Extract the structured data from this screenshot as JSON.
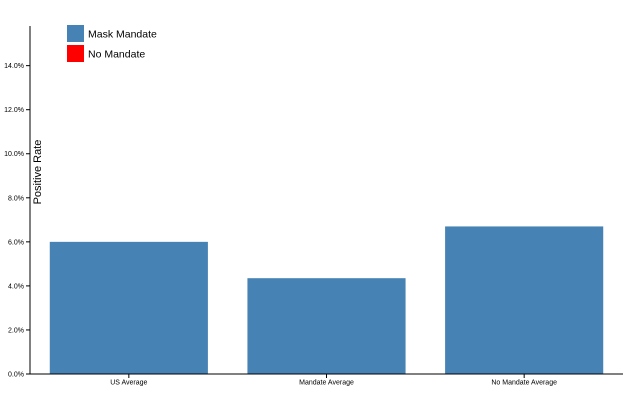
{
  "chart_data": {
    "type": "bar",
    "categories": [
      "US Average",
      "Mandate Average",
      "No Mandate Average"
    ],
    "values": [
      6.0,
      4.35,
      6.7
    ],
    "value_format": "percent",
    "ylabel": "Positive Rate",
    "xlabel": "",
    "ylim": [
      0,
      15.8
    ],
    "yticks": [
      "0.0%",
      "2.0%",
      "4.0%",
      "6.0%",
      "8.0%",
      "10.0%",
      "12.0%",
      "14.0%"
    ],
    "ytick_values": [
      0,
      2,
      4,
      6,
      8,
      10,
      12,
      14
    ],
    "bar_color": "#4682b4",
    "legend": [
      {
        "label": "Mask Mandate",
        "color": "#4682b4"
      },
      {
        "label": "No Mandate",
        "color": "#ff0000"
      }
    ],
    "legend_position": "top-left",
    "grid": false
  }
}
